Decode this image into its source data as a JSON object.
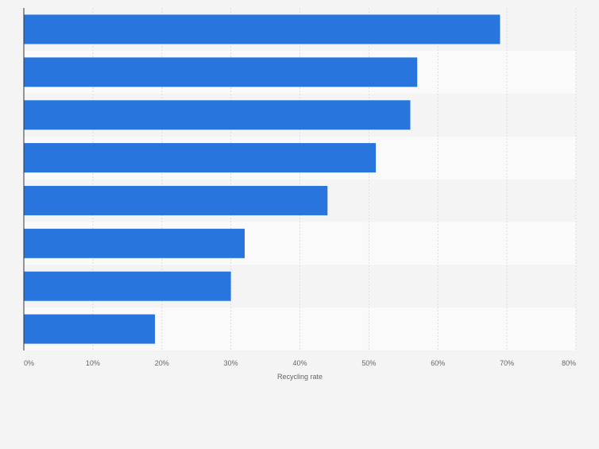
{
  "chart_data": {
    "type": "bar",
    "orientation": "horizontal",
    "title": "",
    "xlabel": "Recycling rate",
    "ylabel": "",
    "categories": [
      "",
      "",
      "",
      "",
      "",
      "",
      "",
      ""
    ],
    "values": [
      69,
      57,
      56,
      51,
      44,
      32,
      30,
      19
    ],
    "xlim": [
      0,
      80
    ],
    "x_ticks": [
      0,
      10,
      20,
      30,
      40,
      50,
      60,
      70,
      80
    ],
    "x_tick_labels": [
      "0%",
      "10%",
      "20%",
      "30%",
      "40%",
      "50%",
      "60%",
      "70%",
      "80%"
    ],
    "grid": true,
    "legend": "none",
    "colors": {
      "bar": "#2876dd",
      "background": "#f4f4f4",
      "band_dark": "#f4f4f4",
      "band_light": "#fafafa",
      "grid": "#dcdcdc",
      "axis": "#333333",
      "text": "#666666"
    }
  }
}
